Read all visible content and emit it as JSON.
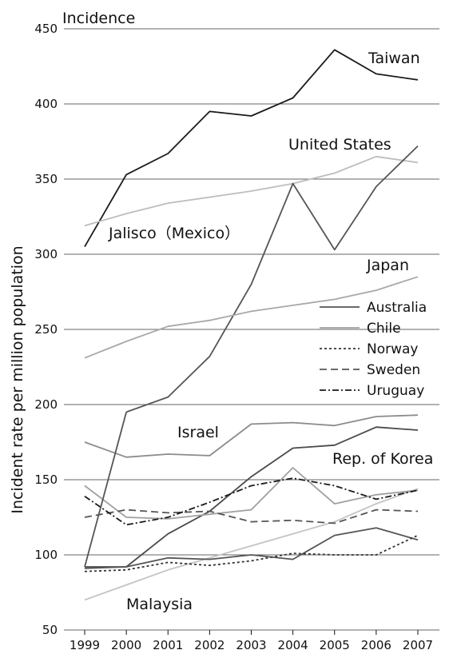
{
  "chart_data": {
    "type": "line",
    "title": "Incidence",
    "ylabel": "Incident rate per million population",
    "xlabel": "",
    "x": [
      "1999",
      "2000",
      "2001",
      "2002",
      "2003",
      "2004",
      "2005",
      "2006",
      "2007"
    ],
    "ylim": [
      50,
      450
    ],
    "yticks": [
      50,
      100,
      150,
      200,
      250,
      300,
      350,
      400,
      450
    ],
    "grid": "horizontal",
    "legend_position": "middle-right",
    "series": [
      {
        "name": "Taiwan",
        "values": [
          305,
          353,
          367,
          395,
          392,
          404,
          436,
          420,
          416
        ],
        "color": "#1a1a1a",
        "dash": "solid"
      },
      {
        "name": "United States",
        "values": [
          319,
          327,
          334,
          338,
          342,
          347,
          354,
          365,
          361
        ],
        "color": "#bdbdbd",
        "dash": "solid"
      },
      {
        "name": "Jalisco（Mexico）",
        "values": [
          null,
          195,
          205,
          232,
          280,
          347,
          303,
          345,
          372
        ],
        "color": "#555555",
        "dash": "solid"
      },
      {
        "name": "Japan",
        "values": [
          231,
          242,
          252,
          256,
          262,
          266,
          270,
          276,
          285
        ],
        "color": "#a8a8a8",
        "dash": "solid"
      },
      {
        "name": "Israel",
        "values": [
          175,
          165,
          167,
          166,
          187,
          188,
          186,
          192,
          193
        ],
        "color": "#8c8c8c",
        "dash": "solid"
      },
      {
        "name": "Rep. of Korea",
        "values": [
          92,
          92,
          114,
          129,
          152,
          171,
          173,
          185,
          183
        ],
        "color": "#4a4a4a",
        "dash": "solid"
      },
      {
        "name": "Malaysia",
        "values": [
          70,
          80,
          90,
          98,
          106,
          114,
          122,
          134,
          144
        ],
        "color": "#c4c4c4",
        "dash": "solid"
      },
      {
        "name": "Australia",
        "values": [
          91,
          92,
          98,
          97,
          100,
          97,
          113,
          118,
          110
        ],
        "color": "#555555",
        "dash": "solid"
      },
      {
        "name": "Chile",
        "values": [
          146,
          125,
          124,
          127,
          130,
          158,
          134,
          140,
          143
        ],
        "color": "#a0a0a0",
        "dash": "solid"
      },
      {
        "name": "Norway",
        "values": [
          89,
          90,
          95,
          93,
          96,
          101,
          100,
          100,
          113
        ],
        "color": "#333333",
        "dash": "dotted"
      },
      {
        "name": "Sweden",
        "values": [
          125,
          130,
          128,
          129,
          122,
          123,
          121,
          130,
          129
        ],
        "color": "#555555",
        "dash": "dashed"
      },
      {
        "name": "Uruguay",
        "values": [
          139,
          120,
          125,
          135,
          146,
          151,
          146,
          137,
          143
        ],
        "color": "#1a1a1a",
        "dash": "dashdot"
      }
    ],
    "line_labels": [
      "Taiwan",
      "United States",
      "Jalisco（Mexico）",
      "Japan",
      "Israel",
      "Rep. of Korea",
      "Malaysia"
    ],
    "legend": [
      "Australia",
      "Chile",
      "Norway",
      "Sweden",
      "Uruguay"
    ]
  }
}
